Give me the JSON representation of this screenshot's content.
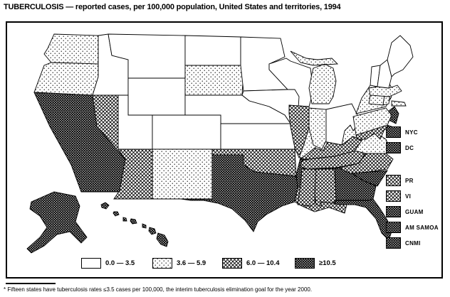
{
  "title": "TUBERCULOSIS — reported cases, per 100,000 population, United States and territories, 1994",
  "legend": {
    "categories": [
      {
        "id": "c1",
        "label": "0.0 — 3.5",
        "pattern": "solid-white"
      },
      {
        "id": "c2",
        "label": "3.6 — 5.9",
        "pattern": "light-dots"
      },
      {
        "id": "c3",
        "label": "6.0 — 10.4",
        "pattern": "medium-crosshatch"
      },
      {
        "id": "c4",
        "label": "≥10.5",
        "pattern": "dark-crosshatch"
      }
    ]
  },
  "territories": [
    {
      "label": "NYC",
      "category": "c4"
    },
    {
      "label": "DC",
      "category": "c4"
    },
    {
      "label": "PR",
      "category": "c3"
    },
    {
      "label": "VI",
      "category": "c3"
    },
    {
      "label": "GUAM",
      "category": "c4"
    },
    {
      "label": "AM SAMOA",
      "category": "c4"
    },
    {
      "label": "CNMI",
      "category": "c4"
    }
  ],
  "map": {
    "states": [
      {
        "id": "WA",
        "name": "Washington",
        "category": "c2"
      },
      {
        "id": "OR",
        "name": "Oregon",
        "category": "c2"
      },
      {
        "id": "ID",
        "name": "Idaho",
        "category": "c1"
      },
      {
        "id": "MT",
        "name": "Montana",
        "category": "c1"
      },
      {
        "id": "WY",
        "name": "Wyoming",
        "category": "c1"
      },
      {
        "id": "ND",
        "name": "North Dakota",
        "category": "c1"
      },
      {
        "id": "SD",
        "name": "South Dakota",
        "category": "c2"
      },
      {
        "id": "MN",
        "name": "Minnesota",
        "category": "c1"
      },
      {
        "id": "WI",
        "name": "Wisconsin",
        "category": "c1"
      },
      {
        "id": "MI",
        "name": "Michigan",
        "category": "c2"
      },
      {
        "id": "IA",
        "name": "Iowa",
        "category": "c1"
      },
      {
        "id": "NE",
        "name": "Nebraska",
        "category": "c1"
      },
      {
        "id": "NV",
        "name": "Nevada",
        "category": "c3"
      },
      {
        "id": "UT",
        "name": "Utah",
        "category": "c1"
      },
      {
        "id": "CO",
        "name": "Colorado",
        "category": "c1"
      },
      {
        "id": "CA",
        "name": "California",
        "category": "c4"
      },
      {
        "id": "AZ",
        "name": "Arizona",
        "category": "c3"
      },
      {
        "id": "NM",
        "name": "New Mexico",
        "category": "c2"
      },
      {
        "id": "KS",
        "name": "Kansas",
        "category": "c1"
      },
      {
        "id": "OK",
        "name": "Oklahoma",
        "category": "c3"
      },
      {
        "id": "TX",
        "name": "Texas",
        "category": "c4"
      },
      {
        "id": "MO",
        "name": "Missouri",
        "category": "c2"
      },
      {
        "id": "AR",
        "name": "Arkansas",
        "category": "c4"
      },
      {
        "id": "LA",
        "name": "Louisiana",
        "category": "c3"
      },
      {
        "id": "IL",
        "name": "Illinois",
        "category": "c3"
      },
      {
        "id": "IN",
        "name": "Indiana",
        "category": "c2"
      },
      {
        "id": "OH",
        "name": "Ohio",
        "category": "c1"
      },
      {
        "id": "KY",
        "name": "Kentucky",
        "category": "c3"
      },
      {
        "id": "TN",
        "name": "Tennessee",
        "category": "c3"
      },
      {
        "id": "MS",
        "name": "Mississippi",
        "category": "c3"
      },
      {
        "id": "AL",
        "name": "Alabama",
        "category": "c3"
      },
      {
        "id": "GA",
        "name": "Georgia",
        "category": "c4"
      },
      {
        "id": "SC",
        "name": "South Carolina",
        "category": "c4"
      },
      {
        "id": "NC",
        "name": "North Carolina",
        "category": "c3"
      },
      {
        "id": "FL",
        "name": "Florida",
        "category": "c4"
      },
      {
        "id": "VA",
        "name": "Virginia",
        "category": "c2"
      },
      {
        "id": "WV",
        "name": "West Virginia",
        "category": "c2"
      },
      {
        "id": "MD",
        "name": "Maryland",
        "category": "c3"
      },
      {
        "id": "DE",
        "name": "Delaware",
        "category": "c3"
      },
      {
        "id": "NJ",
        "name": "New Jersey",
        "category": "c4"
      },
      {
        "id": "PA",
        "name": "Pennsylvania",
        "category": "c2"
      },
      {
        "id": "NY",
        "name": "New York",
        "category": "c2"
      },
      {
        "id": "CT",
        "name": "Connecticut",
        "category": "c2"
      },
      {
        "id": "RI",
        "name": "Rhode Island",
        "category": "c2"
      },
      {
        "id": "MA",
        "name": "Massachusetts",
        "category": "c2"
      },
      {
        "id": "VT",
        "name": "Vermont",
        "category": "c1"
      },
      {
        "id": "NH",
        "name": "New Hampshire",
        "category": "c1"
      },
      {
        "id": "ME",
        "name": "Maine",
        "category": "c1"
      },
      {
        "id": "AK",
        "name": "Alaska",
        "category": "c4"
      },
      {
        "id": "HI",
        "name": "Hawaii",
        "category": "c4"
      }
    ]
  },
  "footnote": "* Fifteen states have tuberculosis rates ≤3.5 cases per 100,000, the interim tuberculosis elimination goal for the year 2000."
}
